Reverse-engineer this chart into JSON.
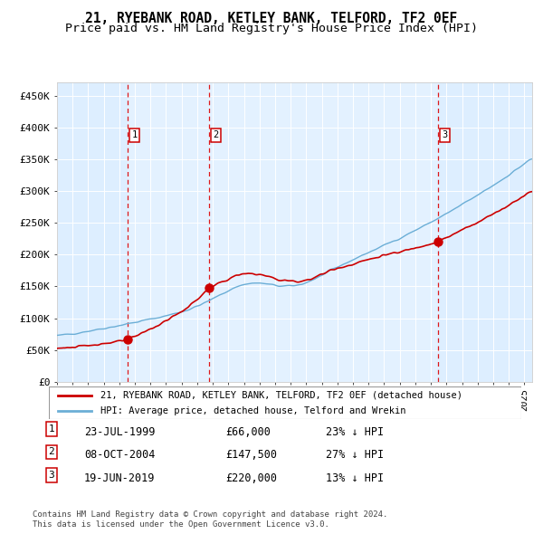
{
  "title": "21, RYEBANK ROAD, KETLEY BANK, TELFORD, TF2 0EF",
  "subtitle": "Price paid vs. HM Land Registry's House Price Index (HPI)",
  "title_fontsize": 10.5,
  "subtitle_fontsize": 9.5,
  "ylim": [
    0,
    470000
  ],
  "yticks": [
    0,
    50000,
    100000,
    150000,
    200000,
    250000,
    300000,
    350000,
    400000,
    450000
  ],
  "ytick_labels": [
    "£0",
    "£50K",
    "£100K",
    "£150K",
    "£200K",
    "£250K",
    "£300K",
    "£350K",
    "£400K",
    "£450K"
  ],
  "hpi_color": "#6baed6",
  "price_color": "#cc0000",
  "bg_color": "#ddeeff",
  "grid_color": "#ffffff",
  "vline_color": "#dd0000",
  "marker_color": "#cc0000",
  "sale_dates": [
    1999.55,
    2004.77,
    2019.46
  ],
  "sale_prices": [
    66000,
    147500,
    220000
  ],
  "sale_labels": [
    "1",
    "2",
    "3"
  ],
  "footer_text1": "Contains HM Land Registry data © Crown copyright and database right 2024.",
  "footer_text2": "This data is licensed under the Open Government Licence v3.0.",
  "legend_label1": "21, RYEBANK ROAD, KETLEY BANK, TELFORD, TF2 0EF (detached house)",
  "legend_label2": "HPI: Average price, detached house, Telford and Wrekin",
  "table_rows": [
    [
      "1",
      "23-JUL-1999",
      "£66,000",
      "23% ↓ HPI"
    ],
    [
      "2",
      "08-OCT-2004",
      "£147,500",
      "27% ↓ HPI"
    ],
    [
      "3",
      "19-JUN-2019",
      "£220,000",
      "13% ↓ HPI"
    ]
  ]
}
